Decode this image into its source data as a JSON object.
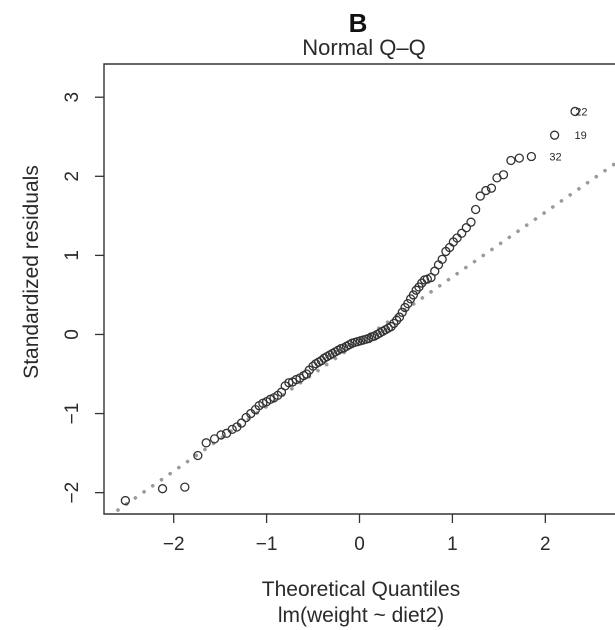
{
  "panel_label": "B",
  "chart_data": {
    "type": "scatter",
    "title": "Normal Q–Q",
    "xlabel": "Theoretical Quantiles",
    "subxlabel": "lm(weight ~ diet2)",
    "ylabel": "Standardized residuals",
    "xlim": [
      -2.75,
      2.75
    ],
    "ylim": [
      -2.27,
      3.42
    ],
    "x_ticks": [
      -2,
      -1,
      0,
      1,
      2
    ],
    "x_tick_labels": [
      "−2",
      "−1",
      "0",
      "1",
      "2"
    ],
    "y_ticks": [
      -2,
      -1,
      0,
      1,
      2,
      3
    ],
    "y_tick_labels": [
      "−2",
      "−1",
      "0",
      "1",
      "2",
      "3"
    ],
    "grid": false,
    "reference_line": {
      "style": "dotted",
      "color": "#9a9a9a",
      "points": [
        [
          -2.6,
          -2.22
        ],
        [
          2.75,
          2.16
        ]
      ]
    },
    "points": {
      "x": [
        -2.52,
        -2.12,
        -1.88,
        -1.74,
        -1.65,
        -1.56,
        -1.49,
        -1.43,
        -1.37,
        -1.32,
        -1.27,
        -1.22,
        -1.17,
        -1.12,
        -1.08,
        -1.04,
        -1.0,
        -0.96,
        -0.92,
        -0.88,
        -0.84,
        -0.8,
        -0.76,
        -0.72,
        -0.68,
        -0.64,
        -0.6,
        -0.57,
        -0.54,
        -0.5,
        -0.47,
        -0.44,
        -0.41,
        -0.38,
        -0.35,
        -0.32,
        -0.29,
        -0.26,
        -0.23,
        -0.2,
        -0.17,
        -0.14,
        -0.11,
        -0.08,
        -0.05,
        -0.02,
        0.01,
        0.04,
        0.07,
        0.1,
        0.13,
        0.16,
        0.19,
        0.22,
        0.25,
        0.28,
        0.31,
        0.34,
        0.37,
        0.4,
        0.43,
        0.46,
        0.49,
        0.52,
        0.55,
        0.58,
        0.61,
        0.64,
        0.67,
        0.7,
        0.73,
        0.77,
        0.81,
        0.85,
        0.89,
        0.93,
        0.97,
        1.01,
        1.05,
        1.1,
        1.15,
        1.2,
        1.25,
        1.3,
        1.36,
        1.42,
        1.48,
        1.55,
        1.63,
        1.72,
        1.85,
        2.1,
        2.32
      ],
      "y": [
        -2.1,
        -1.95,
        -1.93,
        -1.53,
        -1.37,
        -1.32,
        -1.27,
        -1.25,
        -1.2,
        -1.17,
        -1.12,
        -1.05,
        -1.0,
        -0.95,
        -0.9,
        -0.87,
        -0.85,
        -0.82,
        -0.8,
        -0.77,
        -0.73,
        -0.65,
        -0.61,
        -0.6,
        -0.57,
        -0.55,
        -0.52,
        -0.5,
        -0.45,
        -0.4,
        -0.37,
        -0.35,
        -0.33,
        -0.3,
        -0.28,
        -0.26,
        -0.24,
        -0.22,
        -0.2,
        -0.18,
        -0.17,
        -0.15,
        -0.13,
        -0.11,
        -0.1,
        -0.09,
        -0.08,
        -0.07,
        -0.06,
        -0.05,
        -0.03,
        -0.02,
        0.0,
        0.02,
        0.04,
        0.06,
        0.08,
        0.1,
        0.14,
        0.18,
        0.22,
        0.28,
        0.34,
        0.39,
        0.45,
        0.5,
        0.56,
        0.6,
        0.65,
        0.69,
        0.7,
        0.72,
        0.8,
        0.88,
        0.95,
        1.05,
        1.1,
        1.17,
        1.22,
        1.28,
        1.35,
        1.42,
        1.58,
        1.75,
        1.82,
        1.85,
        1.98,
        2.02,
        2.2,
        2.23,
        2.25,
        2.52,
        2.82
      ]
    },
    "labeled_points": [
      {
        "label": "22",
        "x": 2.53,
        "y": 2.82
      },
      {
        "label": "19",
        "x": 2.26,
        "y": 2.52
      },
      {
        "label": "32",
        "x": 1.99,
        "y": 2.25
      }
    ],
    "colors": {
      "points": "#333333",
      "axes": "#333333"
    }
  }
}
